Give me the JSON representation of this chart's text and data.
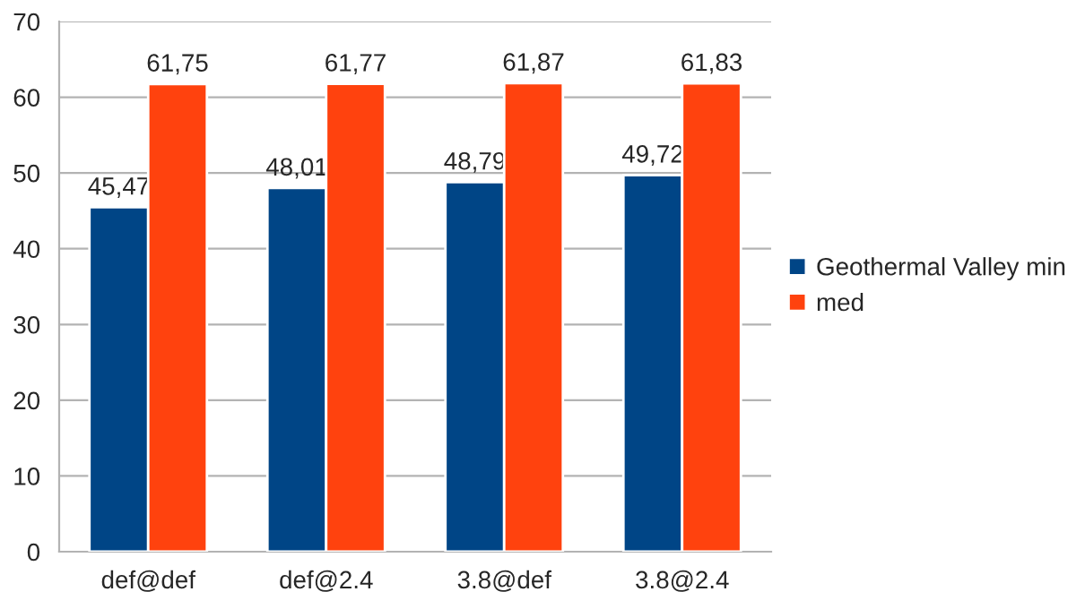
{
  "chart_data": {
    "type": "bar",
    "categories": [
      "def@def",
      "def@2.4",
      "3.8@def",
      "3.8@2.4"
    ],
    "series": [
      {
        "name": "Geothermal Valley min",
        "color": "#004586",
        "values": [
          45.47,
          48.01,
          48.79,
          49.72
        ],
        "value_labels": [
          "45,47",
          "48,01",
          "48,79",
          "49,72"
        ]
      },
      {
        "name": "med",
        "color": "#ff420e",
        "values": [
          61.75,
          61.77,
          61.87,
          61.83
        ],
        "value_labels": [
          "61,75",
          "61,77",
          "61,87",
          "61,83"
        ]
      }
    ],
    "ylim": [
      0,
      70
    ],
    "yticks": [
      0,
      10,
      20,
      30,
      40,
      50,
      60,
      70
    ],
    "grid": "y",
    "legend": "right"
  }
}
